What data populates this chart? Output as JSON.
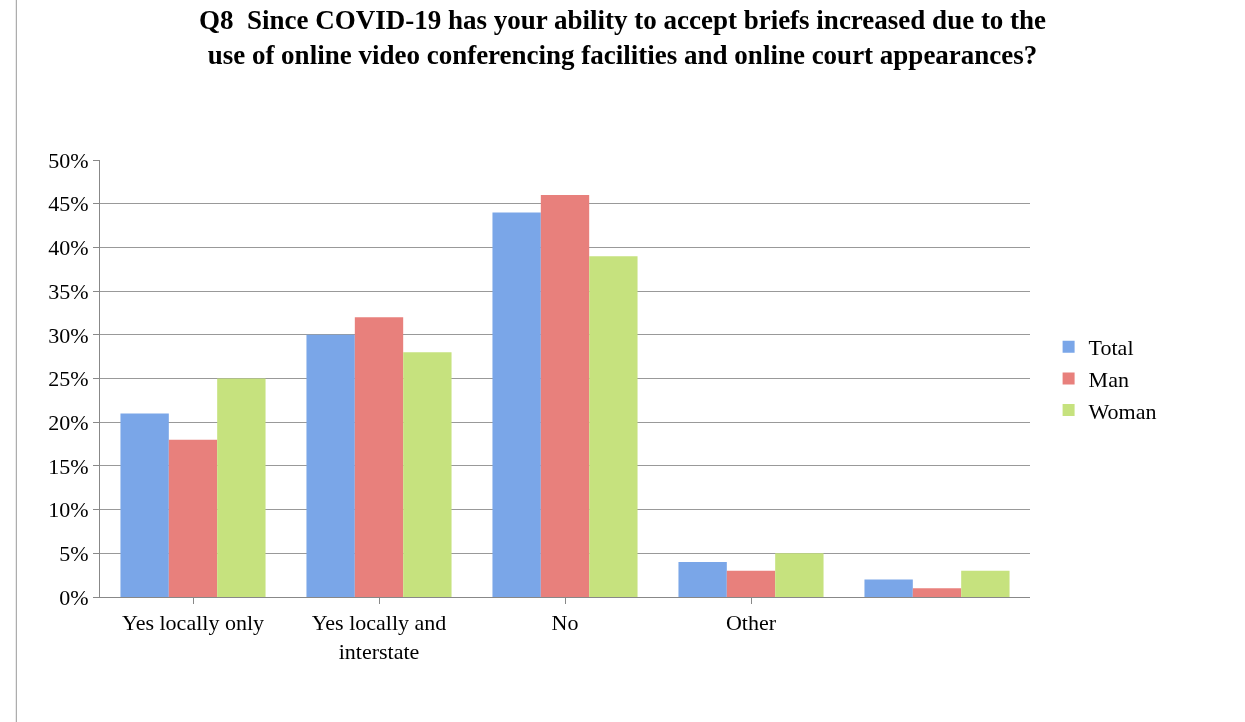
{
  "chart_data": {
    "type": "bar",
    "title": "Q8  Since COVID-19 has your ability to accept briefs increased due to the use of online video conferencing facilities and online court appearances?",
    "categories": [
      "Yes locally only",
      "Yes locally and interstate",
      "No",
      "Other",
      null
    ],
    "series": [
      {
        "name": "Total",
        "color": "#7aa6e8",
        "values": [
          21,
          30,
          44,
          4,
          2
        ]
      },
      {
        "name": "Man",
        "color": "#e8807c",
        "values": [
          18,
          32,
          46,
          3,
          1
        ]
      },
      {
        "name": "Woman",
        "color": "#c6e27e",
        "values": [
          25,
          28,
          39,
          5,
          3
        ]
      }
    ],
    "ylim": [
      0,
      50
    ],
    "yticks": [
      {
        "value": 0,
        "label": "0%"
      },
      {
        "value": 5,
        "label": "5%"
      },
      {
        "value": 10,
        "label": "10%"
      },
      {
        "value": 15,
        "label": "15%"
      },
      {
        "value": 20,
        "label": "20%"
      },
      {
        "value": 25,
        "label": "25%"
      },
      {
        "value": 30,
        "label": "30%"
      },
      {
        "value": 35,
        "label": "35%"
      },
      {
        "value": 40,
        "label": "40%"
      },
      {
        "value": 45,
        "label": "45%"
      },
      {
        "value": 50,
        "label": "50%"
      }
    ],
    "grid": "y",
    "legend": "right"
  }
}
